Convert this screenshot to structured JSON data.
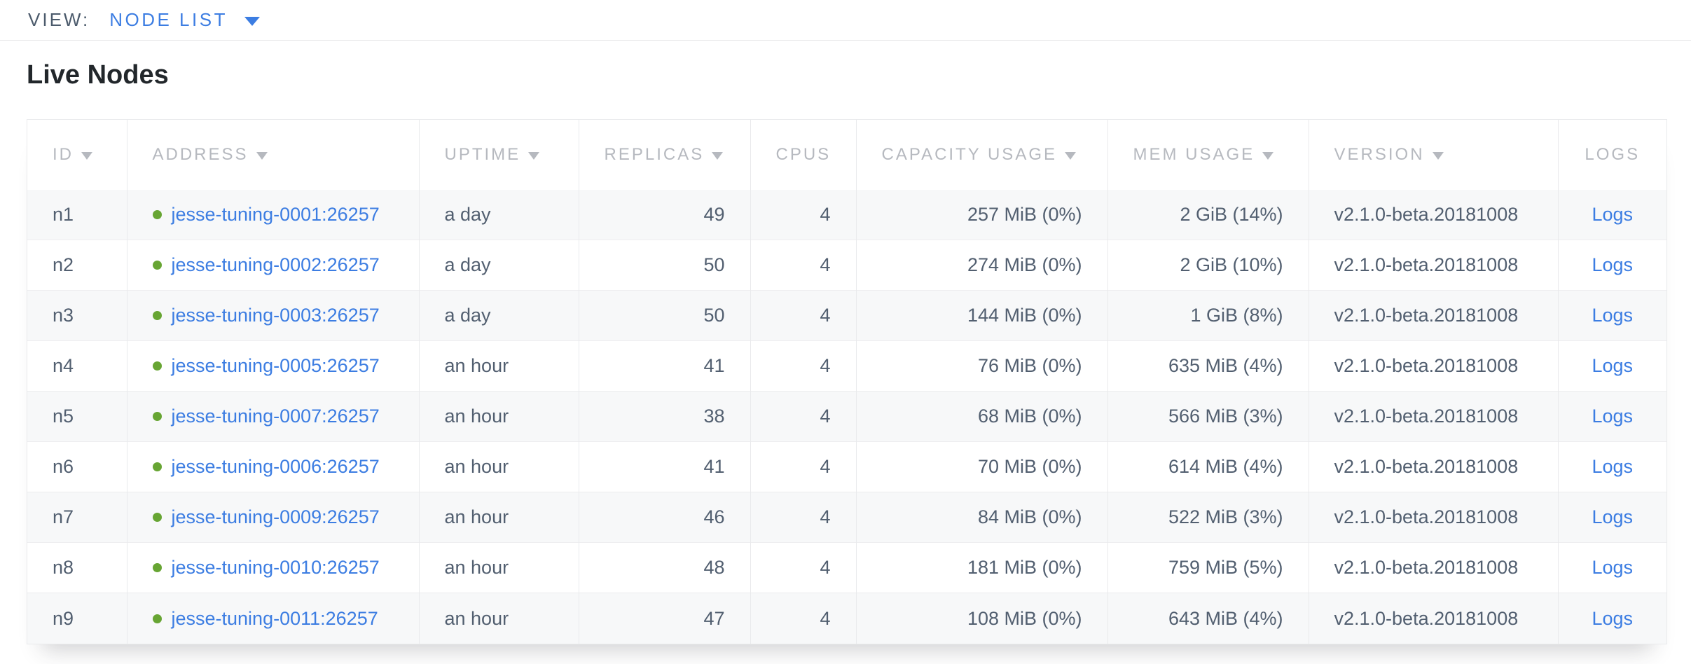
{
  "topbar": {
    "view_label": "VIEW:",
    "selected_view": "NODE LIST"
  },
  "page": {
    "title": "Live Nodes"
  },
  "table": {
    "columns": [
      {
        "key": "id",
        "label": "ID",
        "sortable": true,
        "align": "left"
      },
      {
        "key": "address",
        "label": "ADDRESS",
        "sortable": true,
        "align": "left"
      },
      {
        "key": "uptime",
        "label": "UPTIME",
        "sortable": true,
        "align": "left"
      },
      {
        "key": "replicas",
        "label": "REPLICAS",
        "sortable": true,
        "align": "right"
      },
      {
        "key": "cpus",
        "label": "CPUS",
        "sortable": false,
        "align": "right"
      },
      {
        "key": "capacity",
        "label": "CAPACITY USAGE",
        "sortable": true,
        "align": "right"
      },
      {
        "key": "mem",
        "label": "MEM USAGE",
        "sortable": true,
        "align": "right"
      },
      {
        "key": "version",
        "label": "VERSION",
        "sortable": true,
        "align": "left"
      },
      {
        "key": "logs",
        "label": "LOGS",
        "sortable": false,
        "align": "center"
      }
    ],
    "rows": [
      {
        "id": "n1",
        "status": "healthy",
        "address": "jesse-tuning-0001:26257",
        "uptime": "a day",
        "replicas": "49",
        "cpus": "4",
        "capacity": "257 MiB (0%)",
        "mem": "2 GiB (14%)",
        "version": "v2.1.0-beta.20181008",
        "logs": "Logs"
      },
      {
        "id": "n2",
        "status": "healthy",
        "address": "jesse-tuning-0002:26257",
        "uptime": "a day",
        "replicas": "50",
        "cpus": "4",
        "capacity": "274 MiB (0%)",
        "mem": "2 GiB (10%)",
        "version": "v2.1.0-beta.20181008",
        "logs": "Logs"
      },
      {
        "id": "n3",
        "status": "healthy",
        "address": "jesse-tuning-0003:26257",
        "uptime": "a day",
        "replicas": "50",
        "cpus": "4",
        "capacity": "144 MiB (0%)",
        "mem": "1 GiB (8%)",
        "version": "v2.1.0-beta.20181008",
        "logs": "Logs"
      },
      {
        "id": "n4",
        "status": "healthy",
        "address": "jesse-tuning-0005:26257",
        "uptime": "an hour",
        "replicas": "41",
        "cpus": "4",
        "capacity": "76 MiB (0%)",
        "mem": "635 MiB (4%)",
        "version": "v2.1.0-beta.20181008",
        "logs": "Logs"
      },
      {
        "id": "n5",
        "status": "healthy",
        "address": "jesse-tuning-0007:26257",
        "uptime": "an hour",
        "replicas": "38",
        "cpus": "4",
        "capacity": "68 MiB (0%)",
        "mem": "566 MiB (3%)",
        "version": "v2.1.0-beta.20181008",
        "logs": "Logs"
      },
      {
        "id": "n6",
        "status": "healthy",
        "address": "jesse-tuning-0006:26257",
        "uptime": "an hour",
        "replicas": "41",
        "cpus": "4",
        "capacity": "70 MiB (0%)",
        "mem": "614 MiB (4%)",
        "version": "v2.1.0-beta.20181008",
        "logs": "Logs"
      },
      {
        "id": "n7",
        "status": "healthy",
        "address": "jesse-tuning-0009:26257",
        "uptime": "an hour",
        "replicas": "46",
        "cpus": "4",
        "capacity": "84 MiB (0%)",
        "mem": "522 MiB (3%)",
        "version": "v2.1.0-beta.20181008",
        "logs": "Logs"
      },
      {
        "id": "n8",
        "status": "healthy",
        "address": "jesse-tuning-0010:26257",
        "uptime": "an hour",
        "replicas": "48",
        "cpus": "4",
        "capacity": "181 MiB (0%)",
        "mem": "759 MiB (5%)",
        "version": "v2.1.0-beta.20181008",
        "logs": "Logs"
      },
      {
        "id": "n9",
        "status": "healthy",
        "address": "jesse-tuning-0011:26257",
        "uptime": "an hour",
        "replicas": "47",
        "cpus": "4",
        "capacity": "108 MiB (0%)",
        "mem": "643 MiB (4%)",
        "version": "v2.1.0-beta.20181008",
        "logs": "Logs"
      }
    ]
  },
  "colors": {
    "accent_blue": "#3c7de2",
    "healthy_green": "#67a533",
    "header_gray": "#b6b9bf"
  }
}
